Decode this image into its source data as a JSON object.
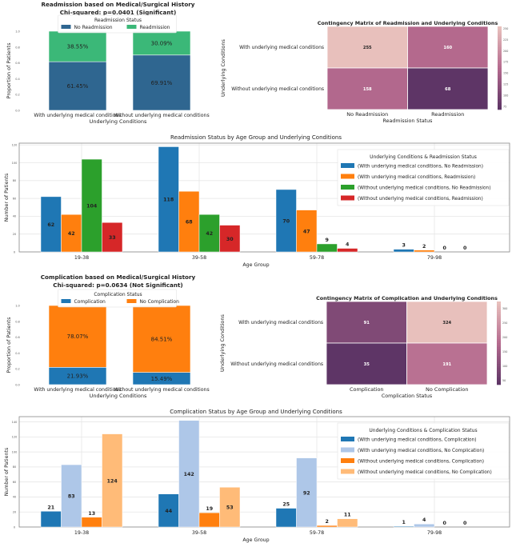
{
  "colors": {
    "readmit_stack": [
      "#2f6690",
      "#3bb878"
    ],
    "comp_stack": [
      "#1f77b4",
      "#ff7f0e"
    ],
    "readmit_grouped": [
      "#1f77b4",
      "#ff7f0e",
      "#2ca02c",
      "#d62728"
    ],
    "comp_grouped": [
      "#1f77b4",
      "#aec7e8",
      "#ff7f0e",
      "#ffbb78"
    ],
    "heatmap_scale": [
      "#5e3566",
      "#b56a8e",
      "#e8c0bc"
    ]
  },
  "chart_data": [
    {
      "type": "bar",
      "stacked": true,
      "title": "Readmission based on Medical/Surgical History",
      "subtitle": "Chi-squared: p=0.0401 (Significant)",
      "xlabel": "Underlying Conditions",
      "ylabel": "Proportion of Patients",
      "ylim": [
        0,
        1
      ],
      "yticks": [
        "0.0",
        "0.2",
        "0.4",
        "0.6",
        "0.8",
        "1.0"
      ],
      "categories": [
        "With underlying medical conditions",
        "Without underlying medical conditions"
      ],
      "legend_title": "Readmission Status",
      "legend_position": "top-center",
      "series": [
        {
          "name": "No Readmission",
          "values": [
            0.6145,
            0.6991
          ],
          "labels": [
            "61.45%",
            "69.91%"
          ]
        },
        {
          "name": "Readmission",
          "values": [
            0.3855,
            0.3009
          ],
          "labels": [
            "38.55%",
            "30.09%"
          ]
        }
      ]
    },
    {
      "type": "heatmap",
      "title": "Contingency Matrix of Readmission and Underlying Conditions",
      "xlabel": "Readmission Status",
      "ylabel": "Underlying Conditions",
      "x_categories": [
        "No Readmission",
        "Readmission"
      ],
      "y_categories": [
        "With underlying medical conditions",
        "Without underlying medical conditions"
      ],
      "values": [
        [
          255,
          160
        ],
        [
          158,
          68
        ]
      ],
      "colorbar_range": [
        68,
        255
      ],
      "colorbar_ticks": [
        "75",
        "100",
        "125",
        "150",
        "175",
        "200",
        "225",
        "250"
      ]
    },
    {
      "type": "bar",
      "title": "Readmission Status by Age Group and Underlying Conditions",
      "xlabel": "Age Group",
      "ylabel": "Number of Patients",
      "ylim": [
        0,
        122
      ],
      "yticks": [
        "0",
        "20",
        "40",
        "60",
        "80",
        "100",
        "120"
      ],
      "grid": true,
      "categories": [
        "19-38",
        "39-58",
        "59-78",
        "79-98"
      ],
      "legend_title": "Underlying Conditions & Readmission Status",
      "legend_position": "top-right",
      "series": [
        {
          "name": "(With underlying medical conditions, No Readmission)",
          "values": [
            62,
            118,
            70,
            3
          ]
        },
        {
          "name": "(With underlying medical conditions, Readmission)",
          "values": [
            42,
            68,
            47,
            2
          ]
        },
        {
          "name": "(Without underlying medical conditions, No Readmission)",
          "values": [
            104,
            42,
            9,
            0
          ]
        },
        {
          "name": "(Without underlying medical conditions, Readmission)",
          "values": [
            33,
            30,
            4,
            0
          ]
        }
      ]
    },
    {
      "type": "bar",
      "stacked": true,
      "title": "Complication based on Medical/Surgical History",
      "subtitle": "Chi-squared: p=0.0634 (Not Significant)",
      "xlabel": "Underlying Conditions",
      "ylabel": "Proportion of Patients",
      "ylim": [
        0,
        1
      ],
      "yticks": [
        "0.0",
        "0.2",
        "0.4",
        "0.6",
        "0.8",
        "1.0"
      ],
      "categories": [
        "With underlying medical conditions",
        "Without underlying medical conditions"
      ],
      "legend_title": "Complication Status",
      "legend_position": "top-center",
      "series": [
        {
          "name": "Complication",
          "values": [
            0.2193,
            0.1549
          ],
          "labels": [
            "21.93%",
            "15.49%"
          ]
        },
        {
          "name": "No Complication",
          "values": [
            0.7807,
            0.8451
          ],
          "labels": [
            "78.07%",
            "84.51%"
          ]
        }
      ]
    },
    {
      "type": "heatmap",
      "title": "Contingency Matrix of Complication and Underlying Conditions",
      "xlabel": "Complication Status",
      "ylabel": "Underlying Conditions",
      "x_categories": [
        "Complication",
        "No Complication"
      ],
      "y_categories": [
        "With underlying medical conditions",
        "Without underlying medical conditions"
      ],
      "values": [
        [
          91,
          324
        ],
        [
          35,
          191
        ]
      ],
      "colorbar_range": [
        35,
        324
      ],
      "colorbar_ticks": [
        "50",
        "100",
        "150",
        "200",
        "250",
        "300"
      ]
    },
    {
      "type": "bar",
      "title": "Complication Status by Age Group and Underlying Conditions",
      "xlabel": "Age Group",
      "ylabel": "Number of Patients",
      "ylim": [
        0,
        147
      ],
      "yticks": [
        "0",
        "20",
        "40",
        "60",
        "80",
        "100",
        "120",
        "140"
      ],
      "grid": true,
      "categories": [
        "19-38",
        "39-58",
        "59-78",
        "79-98"
      ],
      "legend_title": "Underlying Conditions & Complication Status",
      "legend_position": "top-right",
      "series": [
        {
          "name": "(With underlying medical conditions, Complication)",
          "values": [
            21,
            44,
            25,
            1
          ]
        },
        {
          "name": "(With underlying medical conditions, No Complication)",
          "values": [
            83,
            142,
            92,
            4
          ]
        },
        {
          "name": "(Without underlying medical conditions, Complication)",
          "values": [
            13,
            19,
            2,
            0
          ]
        },
        {
          "name": "(Without underlying medical conditions, No Complication)",
          "values": [
            124,
            53,
            11,
            0
          ]
        }
      ]
    }
  ]
}
